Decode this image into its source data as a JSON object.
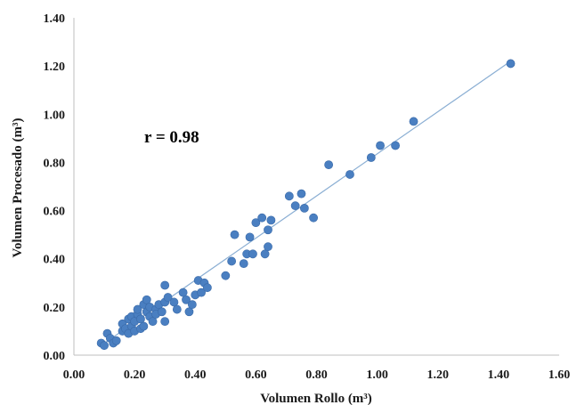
{
  "chart_data": {
    "type": "scatter",
    "title": "",
    "xlabel": "Volumen Rollo (m³)",
    "ylabel": "Volumen Procesado (m³)",
    "xlim": [
      0.0,
      1.6
    ],
    "ylim": [
      0.0,
      1.4
    ],
    "x_ticks": [
      "0.00",
      "0.20",
      "0.40",
      "0.60",
      "0.80",
      "1.00",
      "1.20",
      "1.40",
      "1.60"
    ],
    "y_ticks": [
      "0.00",
      "0.20",
      "0.40",
      "0.60",
      "0.80",
      "1.00",
      "1.20",
      "1.40"
    ],
    "grid": false,
    "legend": "none",
    "annotation": "r = 0.98",
    "point_color": "#4a7fc1",
    "line_color": "#8aaed3",
    "trendline": {
      "x": [
        0.09,
        1.44
      ],
      "y": [
        0.04,
        1.22
      ]
    },
    "points": [
      {
        "x": 0.09,
        "y": 0.05
      },
      {
        "x": 0.1,
        "y": 0.04
      },
      {
        "x": 0.11,
        "y": 0.09
      },
      {
        "x": 0.12,
        "y": 0.07
      },
      {
        "x": 0.13,
        "y": 0.05
      },
      {
        "x": 0.14,
        "y": 0.06
      },
      {
        "x": 0.16,
        "y": 0.1
      },
      {
        "x": 0.16,
        "y": 0.13
      },
      {
        "x": 0.17,
        "y": 0.11
      },
      {
        "x": 0.18,
        "y": 0.09
      },
      {
        "x": 0.18,
        "y": 0.15
      },
      {
        "x": 0.19,
        "y": 0.12
      },
      {
        "x": 0.19,
        "y": 0.16
      },
      {
        "x": 0.2,
        "y": 0.1
      },
      {
        "x": 0.2,
        "y": 0.14
      },
      {
        "x": 0.21,
        "y": 0.17
      },
      {
        "x": 0.21,
        "y": 0.19
      },
      {
        "x": 0.22,
        "y": 0.11
      },
      {
        "x": 0.22,
        "y": 0.15
      },
      {
        "x": 0.23,
        "y": 0.21
      },
      {
        "x": 0.23,
        "y": 0.12
      },
      {
        "x": 0.24,
        "y": 0.18
      },
      {
        "x": 0.24,
        "y": 0.23
      },
      {
        "x": 0.25,
        "y": 0.16
      },
      {
        "x": 0.25,
        "y": 0.2
      },
      {
        "x": 0.26,
        "y": 0.14
      },
      {
        "x": 0.27,
        "y": 0.19
      },
      {
        "x": 0.27,
        "y": 0.17
      },
      {
        "x": 0.28,
        "y": 0.21
      },
      {
        "x": 0.29,
        "y": 0.18
      },
      {
        "x": 0.3,
        "y": 0.14
      },
      {
        "x": 0.3,
        "y": 0.22
      },
      {
        "x": 0.3,
        "y": 0.29
      },
      {
        "x": 0.31,
        "y": 0.24
      },
      {
        "x": 0.33,
        "y": 0.22
      },
      {
        "x": 0.34,
        "y": 0.19
      },
      {
        "x": 0.36,
        "y": 0.26
      },
      {
        "x": 0.37,
        "y": 0.23
      },
      {
        "x": 0.38,
        "y": 0.18
      },
      {
        "x": 0.39,
        "y": 0.21
      },
      {
        "x": 0.4,
        "y": 0.25
      },
      {
        "x": 0.41,
        "y": 0.31
      },
      {
        "x": 0.42,
        "y": 0.26
      },
      {
        "x": 0.43,
        "y": 0.3
      },
      {
        "x": 0.44,
        "y": 0.28
      },
      {
        "x": 0.5,
        "y": 0.33
      },
      {
        "x": 0.52,
        "y": 0.39
      },
      {
        "x": 0.53,
        "y": 0.5
      },
      {
        "x": 0.56,
        "y": 0.38
      },
      {
        "x": 0.57,
        "y": 0.42
      },
      {
        "x": 0.58,
        "y": 0.49
      },
      {
        "x": 0.59,
        "y": 0.42
      },
      {
        "x": 0.6,
        "y": 0.55
      },
      {
        "x": 0.62,
        "y": 0.57
      },
      {
        "x": 0.63,
        "y": 0.42
      },
      {
        "x": 0.64,
        "y": 0.45
      },
      {
        "x": 0.64,
        "y": 0.52
      },
      {
        "x": 0.65,
        "y": 0.56
      },
      {
        "x": 0.71,
        "y": 0.66
      },
      {
        "x": 0.73,
        "y": 0.62
      },
      {
        "x": 0.75,
        "y": 0.67
      },
      {
        "x": 0.76,
        "y": 0.61
      },
      {
        "x": 0.79,
        "y": 0.57
      },
      {
        "x": 0.84,
        "y": 0.79
      },
      {
        "x": 0.91,
        "y": 0.75
      },
      {
        "x": 0.98,
        "y": 0.82
      },
      {
        "x": 1.01,
        "y": 0.87
      },
      {
        "x": 1.06,
        "y": 0.87
      },
      {
        "x": 1.12,
        "y": 0.97
      },
      {
        "x": 1.44,
        "y": 1.21
      }
    ]
  }
}
